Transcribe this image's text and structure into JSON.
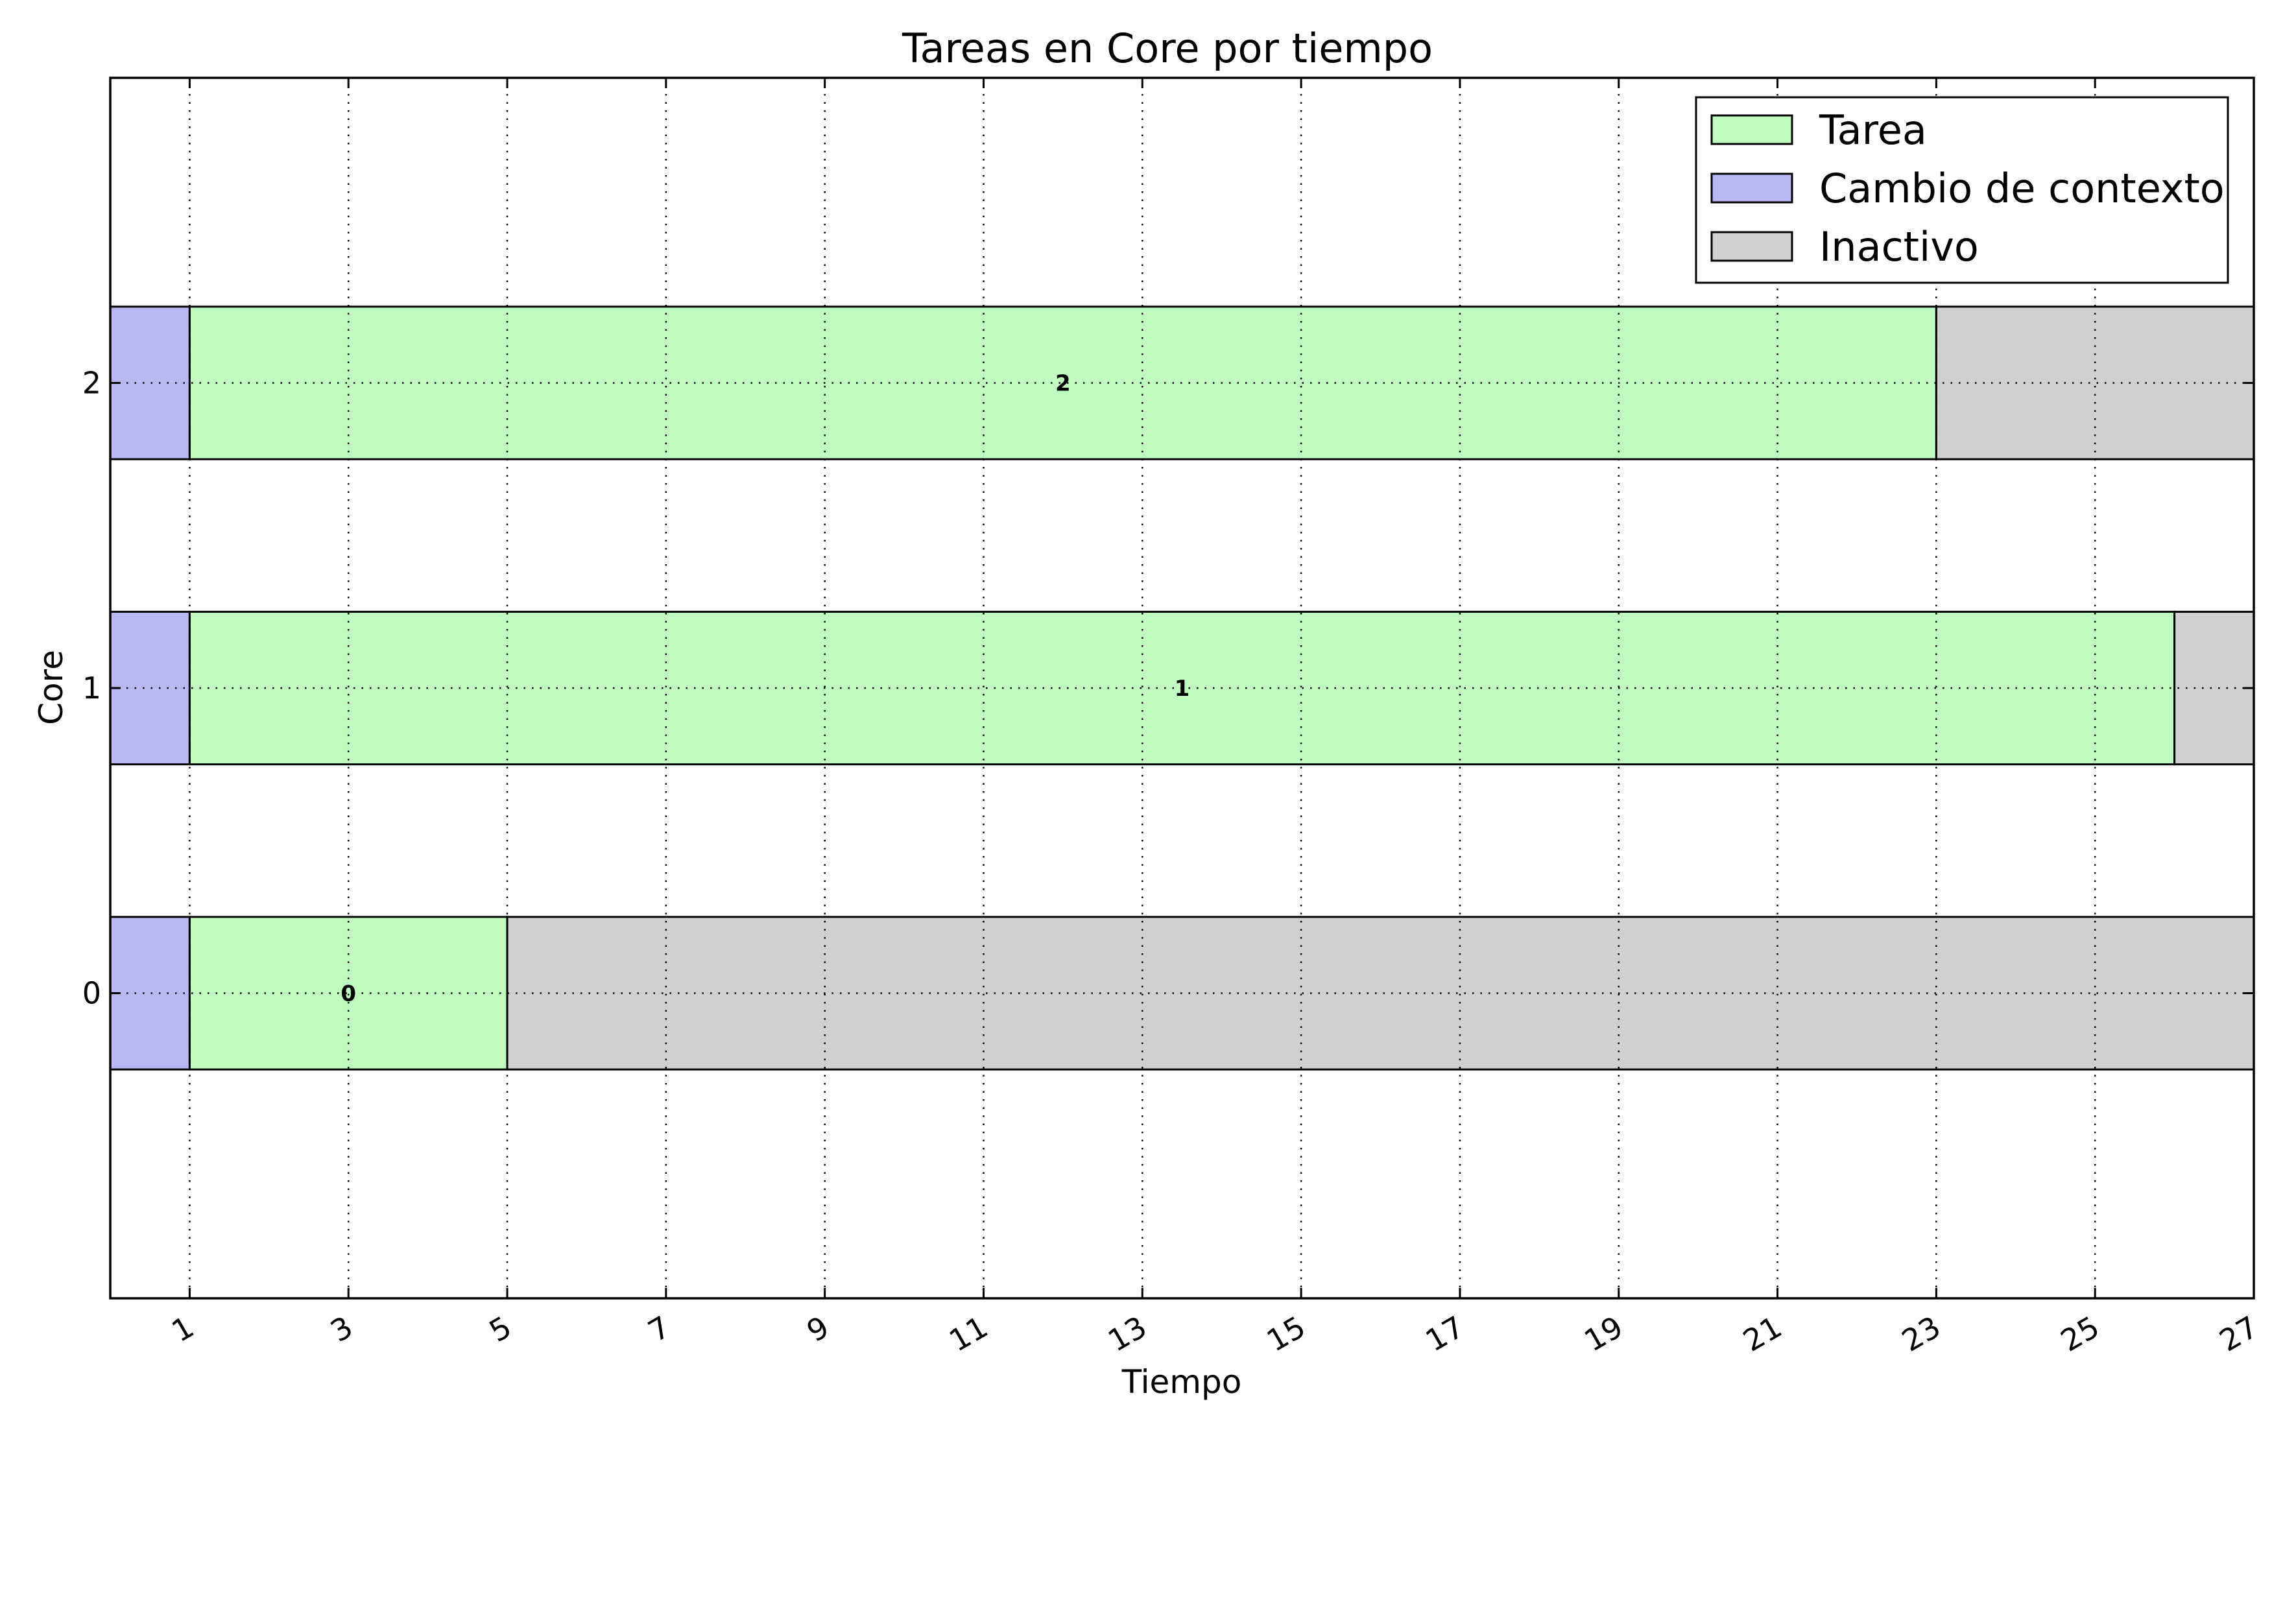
{
  "chart_data": {
    "type": "gantt",
    "title": "Tareas en Core por tiempo",
    "xlabel": "Tiempo",
    "ylabel": "Core",
    "xlim": [
      0,
      27
    ],
    "ylim": [
      -1,
      3
    ],
    "x_ticks": [
      1,
      3,
      5,
      7,
      9,
      11,
      13,
      15,
      17,
      19,
      21,
      23,
      25,
      27
    ],
    "y_ticks": [
      0,
      1,
      2
    ],
    "grid": true,
    "legend_position": "top-right",
    "legend": [
      {
        "key": "task",
        "label": "Tarea",
        "color": "#c0fcc0"
      },
      {
        "key": "switch",
        "label": "Cambio de contexto",
        "color": "#b8b8f4"
      },
      {
        "key": "idle",
        "label": "Inactivo",
        "color": "#d0d0d0"
      }
    ],
    "rows": [
      {
        "core": 0,
        "segments": [
          {
            "kind": "switch",
            "start": 0,
            "end": 1,
            "label": ""
          },
          {
            "kind": "task",
            "start": 1,
            "end": 5,
            "label": "0"
          },
          {
            "kind": "idle",
            "start": 5,
            "end": 27,
            "label": ""
          }
        ]
      },
      {
        "core": 1,
        "segments": [
          {
            "kind": "switch",
            "start": 0,
            "end": 1,
            "label": ""
          },
          {
            "kind": "task",
            "start": 1,
            "end": 26,
            "label": "1"
          },
          {
            "kind": "idle",
            "start": 26,
            "end": 27,
            "label": ""
          }
        ]
      },
      {
        "core": 2,
        "segments": [
          {
            "kind": "switch",
            "start": 0,
            "end": 1,
            "label": ""
          },
          {
            "kind": "task",
            "start": 1,
            "end": 23,
            "label": "2"
          },
          {
            "kind": "idle",
            "start": 23,
            "end": 27,
            "label": ""
          }
        ]
      }
    ]
  }
}
